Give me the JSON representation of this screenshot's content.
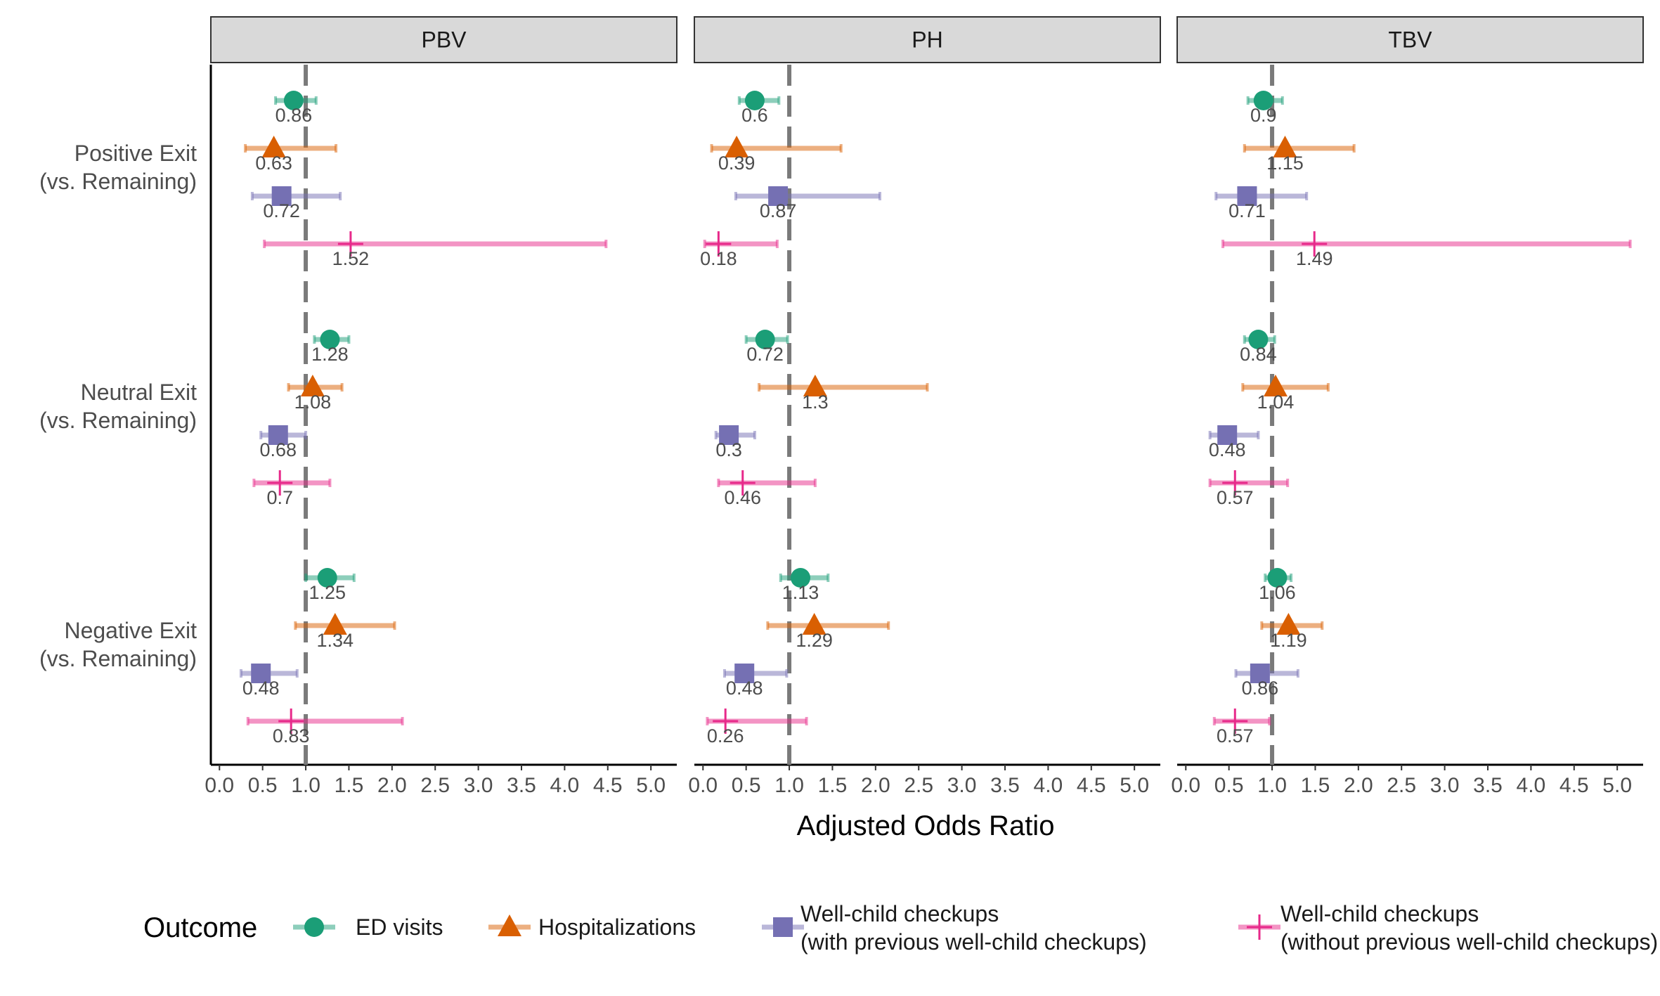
{
  "chart_data": {
    "type": "forest",
    "xlabel": "Adjusted Odds Ratio",
    "xlim": [
      -0.1,
      5.3
    ],
    "xticks": [
      0.0,
      0.5,
      1.0,
      1.5,
      2.0,
      2.5,
      3.0,
      3.5,
      4.0,
      4.5,
      5.0
    ],
    "xtick_labels": [
      "0.0",
      "0.5",
      "1.0",
      "1.5",
      "2.0",
      "2.5",
      "3.0",
      "3.5",
      "4.0",
      "4.5",
      "5.0"
    ],
    "reference_line": 1.0,
    "grid": false,
    "legend_position": "bottom",
    "facets": [
      "PBV",
      "PH",
      "TBV"
    ],
    "rows": [
      {
        "line1": "Positive Exit",
        "line2": "(vs. Remaining)"
      },
      {
        "line1": "Neutral Exit",
        "line2": "(vs. Remaining)"
      },
      {
        "line1": "Negative Exit",
        "line2": "(vs. Remaining)"
      }
    ],
    "legend": {
      "title": "Outcome",
      "entries": [
        {
          "line1": "ED visits",
          "line2": ""
        },
        {
          "line1": "Hospitalizations",
          "line2": ""
        },
        {
          "line1": "Well-child checkups",
          "line2": "(with previous well-child checkups)"
        },
        {
          "line1": "Well-child checkups",
          "line2": "(without previous well-child checkups)"
        }
      ]
    },
    "series": [
      {
        "color": "#1b9e77",
        "shape": "circle"
      },
      {
        "color": "#d95f02",
        "shape": "triangle"
      },
      {
        "color": "#7570b3",
        "shape": "square"
      },
      {
        "color": "#e7298a",
        "shape": "plus"
      }
    ],
    "values": [
      [
        [
          [
            0.86,
            0.65,
            1.12,
            "0.86"
          ],
          [
            0.63,
            0.3,
            1.35,
            "0.63"
          ],
          [
            0.72,
            0.38,
            1.4,
            "0.72"
          ],
          [
            1.52,
            0.52,
            4.48,
            "1.52"
          ]
        ],
        [
          [
            1.28,
            1.1,
            1.5,
            "1.28"
          ],
          [
            1.08,
            0.8,
            1.42,
            "1.08"
          ],
          [
            0.68,
            0.48,
            1.0,
            "0.68"
          ],
          [
            0.7,
            0.4,
            1.28,
            "0.7"
          ]
        ],
        [
          [
            1.25,
            1.0,
            1.56,
            "1.25"
          ],
          [
            1.34,
            0.88,
            2.03,
            "1.34"
          ],
          [
            0.48,
            0.25,
            0.9,
            "0.48"
          ],
          [
            0.83,
            0.33,
            2.12,
            "0.83"
          ]
        ]
      ],
      [
        [
          [
            0.6,
            0.42,
            0.88,
            "0.6"
          ],
          [
            0.39,
            0.1,
            1.6,
            "0.39"
          ],
          [
            0.87,
            0.38,
            2.05,
            "0.87"
          ],
          [
            0.18,
            0.02,
            0.86,
            "0.18"
          ]
        ],
        [
          [
            0.72,
            0.5,
            0.98,
            "0.72"
          ],
          [
            1.3,
            0.65,
            2.6,
            "1.3"
          ],
          [
            0.3,
            0.15,
            0.6,
            "0.3"
          ],
          [
            0.46,
            0.18,
            1.3,
            "0.46"
          ]
        ],
        [
          [
            1.13,
            0.9,
            1.45,
            "1.13"
          ],
          [
            1.29,
            0.75,
            2.15,
            "1.29"
          ],
          [
            0.48,
            0.25,
            0.97,
            "0.48"
          ],
          [
            0.26,
            0.05,
            1.2,
            "0.26"
          ]
        ]
      ],
      [
        [
          [
            0.9,
            0.72,
            1.12,
            "0.9"
          ],
          [
            1.15,
            0.68,
            1.95,
            "1.15"
          ],
          [
            0.71,
            0.35,
            1.4,
            "0.71"
          ],
          [
            1.49,
            0.43,
            5.15,
            "1.49"
          ]
        ],
        [
          [
            0.84,
            0.68,
            1.03,
            "0.84"
          ],
          [
            1.04,
            0.66,
            1.65,
            "1.04"
          ],
          [
            0.48,
            0.28,
            0.84,
            "0.48"
          ],
          [
            0.57,
            0.28,
            1.18,
            "0.57"
          ]
        ],
        [
          [
            1.06,
            0.92,
            1.22,
            "1.06"
          ],
          [
            1.19,
            0.88,
            1.58,
            "1.19"
          ],
          [
            0.86,
            0.58,
            1.3,
            "0.86"
          ],
          [
            0.57,
            0.33,
            0.97,
            "0.57"
          ]
        ]
      ]
    ]
  }
}
